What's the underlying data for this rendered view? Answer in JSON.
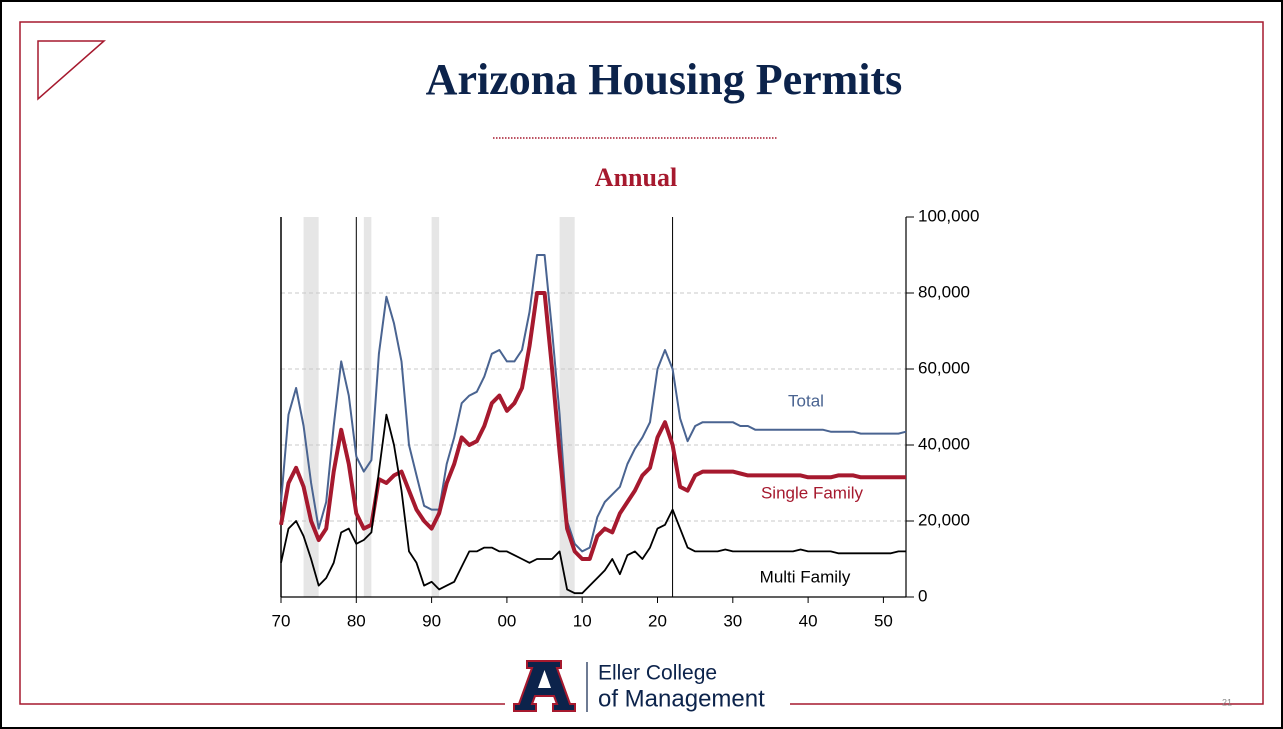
{
  "slide": {
    "title": "Arizona Housing Permits",
    "page_number": "21",
    "footer": {
      "line1": "Eller College",
      "line2": "of Management"
    }
  },
  "chart_data": {
    "type": "line",
    "title": "Annual",
    "x": [
      1970,
      1971,
      1972,
      1973,
      1974,
      1975,
      1976,
      1977,
      1978,
      1979,
      1980,
      1981,
      1982,
      1983,
      1984,
      1985,
      1986,
      1987,
      1988,
      1989,
      1990,
      1991,
      1992,
      1993,
      1994,
      1995,
      1996,
      1997,
      1998,
      1999,
      2000,
      2001,
      2002,
      2003,
      2004,
      2005,
      2006,
      2007,
      2008,
      2009,
      2010,
      2011,
      2012,
      2013,
      2014,
      2015,
      2016,
      2017,
      2018,
      2019,
      2020,
      2021,
      2022,
      2023,
      2024,
      2025,
      2026,
      2027,
      2028,
      2029,
      2030,
      2031,
      2032,
      2033,
      2034,
      2035,
      2036,
      2037,
      2038,
      2039,
      2040,
      2041,
      2042,
      2043,
      2044,
      2045,
      2046,
      2047,
      2048,
      2049,
      2050,
      2051,
      2052,
      2053
    ],
    "series": [
      {
        "name": "Total",
        "color": "#4a6491",
        "width": 2,
        "values": [
          25000,
          48000,
          55000,
          45000,
          30000,
          18000,
          25000,
          45000,
          62000,
          53000,
          37000,
          33000,
          36000,
          64000,
          79000,
          72000,
          62000,
          40000,
          32000,
          24000,
          23000,
          23000,
          35000,
          42000,
          51000,
          53000,
          54000,
          58000,
          64000,
          65000,
          62000,
          62000,
          65000,
          75000,
          90000,
          90000,
          70000,
          48000,
          20000,
          14000,
          12000,
          13000,
          21000,
          25000,
          27000,
          29000,
          35000,
          39000,
          42000,
          46000,
          60000,
          65000,
          60000,
          47000,
          41000,
          45000,
          46000,
          46000,
          46000,
          46000,
          46000,
          45000,
          45000,
          44000,
          44000,
          44000,
          44000,
          44000,
          44000,
          44000,
          44000,
          44000,
          44000,
          43500,
          43500,
          43500,
          43500,
          43000,
          43000,
          43000,
          43000,
          43000,
          43000,
          43500
        ]
      },
      {
        "name": "Single Family",
        "color": "#a6192e",
        "width": 4,
        "values": [
          19000,
          30000,
          34000,
          29000,
          20000,
          15000,
          18000,
          33000,
          44000,
          35000,
          22000,
          18000,
          19000,
          31000,
          30000,
          32000,
          33000,
          28000,
          23000,
          20000,
          18000,
          22000,
          30000,
          35000,
          42000,
          40000,
          41000,
          45000,
          51000,
          53000,
          49000,
          51000,
          55000,
          66000,
          80000,
          80000,
          60000,
          38000,
          18000,
          12000,
          10000,
          10000,
          16000,
          18000,
          17000,
          22000,
          25000,
          28000,
          32000,
          34000,
          42000,
          46000,
          40000,
          29000,
          28000,
          32000,
          33000,
          33000,
          33000,
          33000,
          33000,
          32500,
          32000,
          32000,
          32000,
          32000,
          32000,
          32000,
          32000,
          32000,
          31500,
          31500,
          31500,
          31500,
          32000,
          32000,
          32000,
          31500,
          31500,
          31500,
          31500,
          31500,
          31500,
          31500
        ]
      },
      {
        "name": "Multi Family",
        "color": "#000000",
        "width": 1.8,
        "values": [
          9000,
          18000,
          20000,
          16000,
          10000,
          3000,
          5000,
          9000,
          17000,
          18000,
          14000,
          15000,
          17000,
          33000,
          48000,
          40000,
          28000,
          12000,
          9000,
          3000,
          4000,
          2000,
          3000,
          4000,
          8000,
          12000,
          12000,
          13000,
          13000,
          12000,
          12000,
          11000,
          10000,
          9000,
          10000,
          10000,
          10000,
          12000,
          2000,
          1000,
          1000,
          3000,
          5000,
          7000,
          10000,
          6000,
          11000,
          12000,
          10000,
          13000,
          18000,
          19000,
          23000,
          18000,
          13000,
          12000,
          12000,
          12000,
          12000,
          12500,
          12000,
          12000,
          12000,
          12000,
          12000,
          12000,
          12000,
          12000,
          12000,
          12500,
          12000,
          12000,
          12000,
          12000,
          11500,
          11500,
          11500,
          11500,
          11500,
          11500,
          11500,
          11500,
          12000,
          12000
        ]
      }
    ],
    "recessions": [
      [
        1973,
        1975
      ],
      [
        1981,
        1982
      ],
      [
        1990,
        1991
      ],
      [
        2007,
        2009
      ]
    ],
    "vlines": [
      1980,
      2022
    ],
    "xlim": [
      1970,
      2053
    ],
    "xticks": [
      {
        "value": 1970,
        "label": "70"
      },
      {
        "value": 1980,
        "label": "80"
      },
      {
        "value": 1990,
        "label": "90"
      },
      {
        "value": 2000,
        "label": "00"
      },
      {
        "value": 2010,
        "label": "10"
      },
      {
        "value": 2020,
        "label": "20"
      },
      {
        "value": 2030,
        "label": "30"
      },
      {
        "value": 2040,
        "label": "40"
      },
      {
        "value": 2050,
        "label": "50"
      }
    ],
    "ylim": [
      0,
      100000
    ],
    "yticks": [
      0,
      {
        "value": 20000,
        "label": "20,000"
      },
      {
        "value": 40000,
        "label": "40,000"
      },
      {
        "value": 60000,
        "label": "60,000"
      },
      {
        "value": 80000,
        "label": "80,000"
      },
      {
        "value": 100000,
        "label": "100,000"
      }
    ],
    "grid": true
  }
}
